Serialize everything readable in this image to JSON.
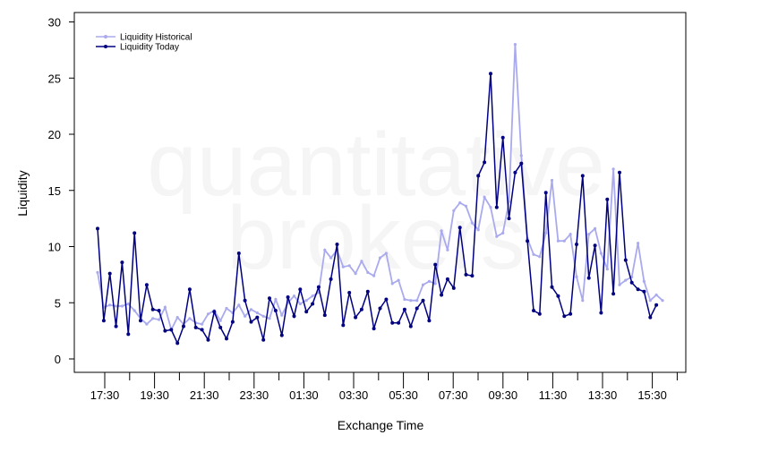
{
  "watermark": {
    "line1": "quantitative",
    "line2": "brokers"
  },
  "chart_data": {
    "type": "line",
    "xlabel": "Exchange Time",
    "ylabel": "Liquidity",
    "ylim": [
      -1,
      31
    ],
    "yticks": [
      0,
      5,
      10,
      15,
      20,
      25,
      30
    ],
    "x_tick_labels": [
      "17:30",
      "19:30",
      "21:30",
      "23:30",
      "01:30",
      "03:30",
      "05:30",
      "07:30",
      "09:30",
      "11:30",
      "13:30",
      "15:30"
    ],
    "legend_position": "top-left",
    "grid": false,
    "series": [
      {
        "name": "Liquidity Historical",
        "color": "#aaaaee",
        "values": [
          7.7,
          4.6,
          4.8,
          4.7,
          4.7,
          4.9,
          4.3,
          3.6,
          3.1,
          3.6,
          3.5,
          4.6,
          2.6,
          3.7,
          3.1,
          3.6,
          3.2,
          3.1,
          4.0,
          4.3,
          3.4,
          4.5,
          4.1,
          4.8,
          3.8,
          4.4,
          4.1,
          3.8,
          3.6,
          5.3,
          3.9,
          5.0,
          5.6,
          4.9,
          5.2,
          5.6,
          5.9,
          9.7,
          9.0,
          9.7,
          8.2,
          8.3,
          7.6,
          8.7,
          7.7,
          7.4,
          9.0,
          9.4,
          6.7,
          7.0,
          5.3,
          5.2,
          5.2,
          6.6,
          6.9,
          6.7,
          11.4,
          9.7,
          13.2,
          13.9,
          13.6,
          12.1,
          11.5,
          14.4,
          13.5,
          10.9,
          11.2,
          14.0,
          28.0,
          18.1,
          10.7,
          9.3,
          9.1,
          11.2,
          15.9,
          10.5,
          10.5,
          11.1,
          7.3,
          5.2,
          11.1,
          11.6,
          9.4,
          8.0,
          16.9,
          6.6,
          7.0,
          7.3,
          10.3,
          6.9,
          5.2,
          5.7,
          5.2
        ]
      },
      {
        "name": "Liquidity Today",
        "color": "#000080",
        "values": [
          11.6,
          3.4,
          7.6,
          2.9,
          8.6,
          2.2,
          11.2,
          3.4,
          6.6,
          4.4,
          4.3,
          2.5,
          2.6,
          1.4,
          2.9,
          6.2,
          2.8,
          2.6,
          1.7,
          4.2,
          2.8,
          1.8,
          3.3,
          9.4,
          5.2,
          3.3,
          3.7,
          1.7,
          5.4,
          4.3,
          2.1,
          5.5,
          3.8,
          6.2,
          4.2,
          4.9,
          6.4,
          3.9,
          7.1,
          10.2,
          3.0,
          5.9,
          3.7,
          4.4,
          6.0,
          2.7,
          4.5,
          5.3,
          3.2,
          3.2,
          4.4,
          2.9,
          4.5,
          5.2,
          3.4,
          8.4,
          5.7,
          7.1,
          6.3,
          11.7,
          7.5,
          7.4,
          16.3,
          17.5,
          25.4,
          13.5,
          19.7,
          12.5,
          16.6,
          17.4,
          10.5,
          4.3,
          4.0,
          14.8,
          6.4,
          5.6,
          3.8,
          4.0,
          10.2,
          16.3,
          7.2,
          10.1,
          4.1,
          14.2,
          5.8,
          16.6,
          8.8,
          6.8,
          6.2,
          6.0,
          3.7,
          4.8
        ]
      }
    ]
  }
}
